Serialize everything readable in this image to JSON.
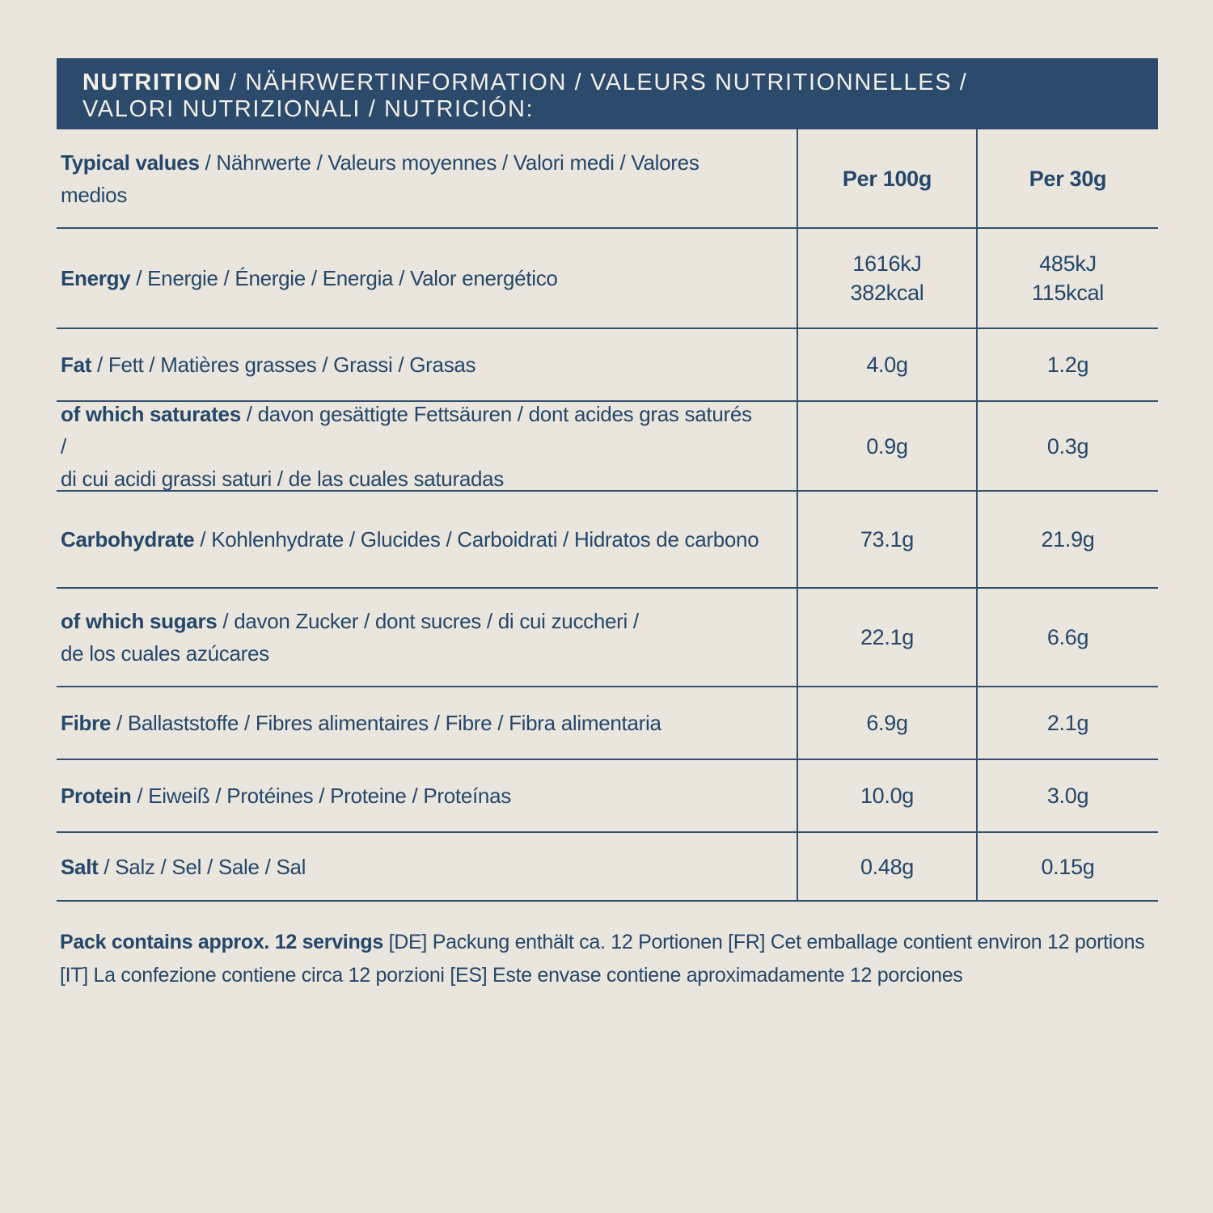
{
  "colors": {
    "background": "#EAE6DD",
    "header_bar": "#2B4A6C",
    "header_text": "#F2EFE8",
    "text": "#24476B",
    "rule_line": "#31506F"
  },
  "header": {
    "title_bold": "NUTRITION",
    "title_rest": " / NÄHRWERTINFORMATION / VALEURS NUTRITIONNELLES /\nVALORI NUTRIZIONALI / NUTRICIÓN:"
  },
  "table": {
    "rows": [
      {
        "label_bold": "Typical values",
        "label_rest": " / Nährwerte / Valeurs moyennes / Valori medi / Valores medios",
        "per_100g": "Per 100g",
        "per_30g": "Per 30g"
      },
      {
        "label_bold": "Energy",
        "label_rest": " / Energie / Énergie / Energia / Valor energético",
        "per_100g": "1616kJ\n382kcal",
        "per_30g": "485kJ\n115kcal"
      },
      {
        "label_bold": "Fat",
        "label_rest": " / Fett / Matières grasses / Grassi / Grasas",
        "per_100g": "4.0g",
        "per_30g": "1.2g"
      },
      {
        "label_bold": "of which saturates",
        "label_rest": " / davon gesättigte Fettsäuren / dont acides gras saturés /\ndi cui acidi grassi saturi / de las cuales saturadas",
        "per_100g": "0.9g",
        "per_30g": "0.3g"
      },
      {
        "label_bold": "Carbohydrate",
        "label_rest": " / Kohlenhydrate / Glucides / Carboidrati / Hidratos de carbono",
        "per_100g": "73.1g",
        "per_30g": "21.9g"
      },
      {
        "label_bold": "of which sugars",
        "label_rest": " / davon Zucker / dont sucres / di cui zuccheri /\nde los cuales azúcares",
        "per_100g": "22.1g",
        "per_30g": "6.6g"
      },
      {
        "label_bold": "Fibre",
        "label_rest": " / Ballaststoffe / Fibres alimentaires / Fibre / Fibra alimentaria",
        "per_100g": "6.9g",
        "per_30g": "2.1g"
      },
      {
        "label_bold": "Protein",
        "label_rest": " / Eiweiß / Protéines / Proteine / Proteínas",
        "per_100g": "10.0g",
        "per_30g": "3.0g"
      },
      {
        "label_bold": "Salt",
        "label_rest": " / Salz / Sel / Sale / Sal",
        "per_100g": "0.48g",
        "per_30g": "0.15g"
      }
    ]
  },
  "footer": {
    "servings_bold": "Pack contains approx. 12 servings",
    "servings_rest": " [DE] Packung enthält ca. 12 Portionen [FR] Cet emballage contient environ 12 portions\n[IT] La confezione contiene circa 12 porzioni [ES] Este envase contiene aproximadamente 12 porciones"
  }
}
